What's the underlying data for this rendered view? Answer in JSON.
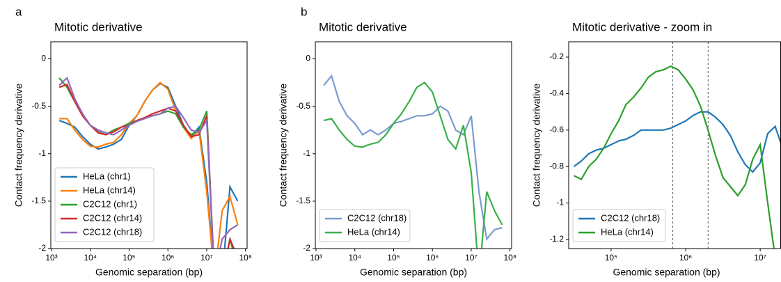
{
  "chart_data": [
    {
      "type": "line",
      "panel_label": "a",
      "title": "Mitotic derivative",
      "xlabel": "Genomic separation (bp)",
      "ylabel": "Contact frequency derivative",
      "log_x": true,
      "legend": "lower left",
      "x": [
        1585,
        2512,
        3981,
        6310,
        10000,
        15849,
        25119,
        39811,
        63096,
        100000,
        158489,
        251189,
        398107,
        630957,
        1000000,
        1584893,
        2511886,
        3981072,
        6309573,
        10000000,
        15848932,
        25118864,
        39810717,
        63095734
      ],
      "series": [
        {
          "name": "HeLa (chr1)",
          "color": "#1f77b4",
          "values": [
            -0.65,
            -0.68,
            -0.72,
            -0.82,
            -0.9,
            -0.95,
            -0.93,
            -0.9,
            -0.85,
            -0.7,
            -0.6,
            -0.45,
            -0.33,
            -0.26,
            -0.3,
            -0.5,
            -0.7,
            -0.82,
            -0.72,
            -1.3,
            -2.3,
            -2.3,
            -1.35,
            -1.5
          ]
        },
        {
          "name": "HeLa (chr14)",
          "color": "#ff7f0e",
          "values": [
            -0.63,
            -0.63,
            -0.75,
            -0.85,
            -0.92,
            -0.93,
            -0.9,
            -0.88,
            -0.8,
            -0.68,
            -0.6,
            -0.45,
            -0.33,
            -0.25,
            -0.32,
            -0.55,
            -0.72,
            -0.84,
            -0.75,
            -1.4,
            -2.3,
            -1.6,
            -1.45,
            -1.75
          ]
        },
        {
          "name": "C2C12 (chr1)",
          "color": "#2ca02c",
          "values": [
            -0.2,
            -0.3,
            -0.45,
            -0.6,
            -0.7,
            -0.77,
            -0.8,
            -0.75,
            -0.72,
            -0.68,
            -0.65,
            -0.62,
            -0.6,
            -0.58,
            -0.55,
            -0.58,
            -0.72,
            -0.8,
            -0.75,
            -0.55,
            -2.3,
            -2.3,
            -1.9,
            -2.2
          ]
        },
        {
          "name": "C2C12 (chr14)",
          "color": "#d62728",
          "values": [
            -0.3,
            -0.27,
            -0.45,
            -0.6,
            -0.7,
            -0.78,
            -0.8,
            -0.77,
            -0.72,
            -0.7,
            -0.65,
            -0.62,
            -0.58,
            -0.55,
            -0.52,
            -0.55,
            -0.7,
            -0.82,
            -0.8,
            -0.6,
            -2.3,
            -2.3,
            -1.9,
            -2.1
          ]
        },
        {
          "name": "C2C12 (chr18)",
          "color": "#9467bd",
          "values": [
            -0.28,
            -0.2,
            -0.42,
            -0.58,
            -0.7,
            -0.75,
            -0.78,
            -0.8,
            -0.75,
            -0.7,
            -0.66,
            -0.63,
            -0.6,
            -0.58,
            -0.52,
            -0.5,
            -0.62,
            -0.75,
            -0.78,
            -0.65,
            -2.3,
            -1.9,
            -1.8,
            -1.75
          ]
        }
      ],
      "xlim": [
        960,
        110000000
      ],
      "ylim": [
        -2,
        0.18
      ],
      "xticks": [
        {
          "value": 1000,
          "label": "10³"
        },
        {
          "value": 10000,
          "label": "10⁴"
        },
        {
          "value": 100000,
          "label": "10⁵"
        },
        {
          "value": 1000000,
          "label": "10⁶"
        },
        {
          "value": 10000000,
          "label": "10⁷"
        },
        {
          "value": 100000000,
          "label": "10⁸"
        }
      ],
      "yticks": [
        -2,
        -1.5,
        -1,
        -0.5,
        0
      ]
    },
    {
      "type": "line",
      "panel_label": "b",
      "title": "Mitotic derivative",
      "xlabel": "Genomic separation (bp)",
      "ylabel": "Contact frequency derivative",
      "log_x": true,
      "legend": "lower left",
      "x": [
        1585,
        2512,
        3981,
        6310,
        10000,
        15849,
        25119,
        39811,
        63096,
        100000,
        158489,
        251189,
        398107,
        630957,
        1000000,
        1584893,
        2511886,
        3981072,
        6309573,
        10000000,
        15848932,
        25118864,
        39810717,
        63095734
      ],
      "series": [
        {
          "name": "C2C12 (chr18)",
          "color": "#7b9bd1",
          "values": [
            -0.28,
            -0.18,
            -0.45,
            -0.6,
            -0.68,
            -0.8,
            -0.75,
            -0.8,
            -0.75,
            -0.68,
            -0.66,
            -0.63,
            -0.6,
            -0.6,
            -0.58,
            -0.5,
            -0.55,
            -0.75,
            -0.8,
            -0.6,
            -1.4,
            -1.9,
            -1.8,
            -1.78
          ]
        },
        {
          "name": "HeLa (chr14)",
          "color": "#3ab04a",
          "values": [
            -0.65,
            -0.63,
            -0.75,
            -0.85,
            -0.92,
            -0.93,
            -0.9,
            -0.88,
            -0.8,
            -0.68,
            -0.58,
            -0.45,
            -0.3,
            -0.25,
            -0.35,
            -0.6,
            -0.85,
            -0.95,
            -0.7,
            -1.2,
            -2.3,
            -1.4,
            -1.6,
            -1.75
          ]
        }
      ],
      "xlim": [
        960,
        110000000
      ],
      "ylim": [
        -2,
        0.18
      ],
      "xticks": [
        {
          "value": 1000,
          "label": "10³"
        },
        {
          "value": 10000,
          "label": "10⁴"
        },
        {
          "value": 100000,
          "label": "10⁵"
        },
        {
          "value": 1000000,
          "label": "10⁶"
        },
        {
          "value": 10000000,
          "label": "10⁷"
        },
        {
          "value": 100000000,
          "label": "10⁸"
        }
      ],
      "yticks": [
        -2,
        -1.5,
        -1,
        -0.5,
        0
      ]
    },
    {
      "type": "line",
      "title": "Mitotic derivative - zoom in",
      "xlabel": "Genomic separation (bp)",
      "ylabel": "Contact frequency derivative",
      "log_x": true,
      "legend": "lower left",
      "vlines": [
        670000,
        2000000
      ],
      "x": [
        31623,
        39811,
        50119,
        63096,
        79433,
        100000,
        125893,
        158489,
        199526,
        251189,
        316228,
        398107,
        501187,
        630957,
        794328,
        1000000,
        1258925,
        1584893,
        1995262,
        2511886,
        3162278,
        3981072,
        5011872,
        6309573,
        7943282,
        10000000,
        12589254,
        15848932,
        19952623
      ],
      "series": [
        {
          "name": "C2C12 (chr18)",
          "color": "#1f77b4",
          "values": [
            -0.8,
            -0.77,
            -0.73,
            -0.71,
            -0.7,
            -0.68,
            -0.66,
            -0.65,
            -0.63,
            -0.6,
            -0.6,
            -0.6,
            -0.6,
            -0.59,
            -0.57,
            -0.55,
            -0.52,
            -0.5,
            -0.5,
            -0.53,
            -0.57,
            -0.63,
            -0.72,
            -0.79,
            -0.83,
            -0.78,
            -0.62,
            -0.58,
            -0.7
          ]
        },
        {
          "name": "HeLa (chr14)",
          "color": "#2ca02c",
          "values": [
            -0.85,
            -0.87,
            -0.8,
            -0.76,
            -0.7,
            -0.62,
            -0.55,
            -0.46,
            -0.42,
            -0.37,
            -0.31,
            -0.28,
            -0.27,
            -0.25,
            -0.27,
            -0.32,
            -0.38,
            -0.47,
            -0.6,
            -0.74,
            -0.86,
            -0.91,
            -0.96,
            -0.9,
            -0.76,
            -0.68,
            -1.0,
            -1.3,
            -1.4
          ]
        }
      ],
      "xlim": [
        27000,
        19000000
      ],
      "ylim": [
        -1.25,
        -0.116
      ],
      "xticks": [
        {
          "value": 100000,
          "label": "10⁵"
        },
        {
          "value": 1000000,
          "label": "10⁶"
        },
        {
          "value": 10000000,
          "label": "10⁷"
        }
      ],
      "yticks": [
        -1.2,
        -1,
        -0.8,
        -0.6,
        -0.4,
        -0.2
      ]
    }
  ]
}
